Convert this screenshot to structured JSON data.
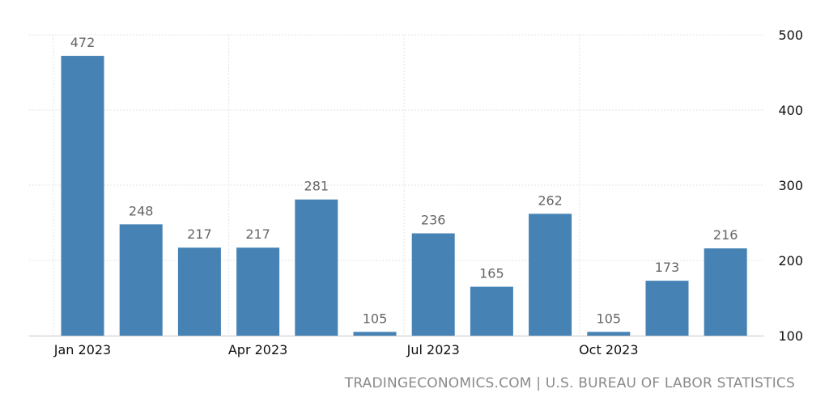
{
  "chart_data": {
    "type": "bar",
    "x": [
      "2023-01",
      "2023-02",
      "2023-03",
      "2023-04",
      "2023-05",
      "2023-06",
      "2023-07",
      "2023-08",
      "2023-09",
      "2023-10",
      "2023-11",
      "2023-12"
    ],
    "values": [
      472,
      248,
      217,
      217,
      281,
      105,
      236,
      165,
      262,
      105,
      173,
      216
    ],
    "data_labels": [
      "472",
      "248",
      "217",
      "217",
      "281",
      "105",
      "236",
      "165",
      "262",
      "105",
      "173",
      "216"
    ],
    "x_tick_labels": [
      {
        "at": "2023-01",
        "label": "Jan 2023"
      },
      {
        "at": "2023-04",
        "label": "Apr 2023"
      },
      {
        "at": "2023-07",
        "label": "Jul 2023"
      },
      {
        "at": "2023-10",
        "label": "Oct 2023"
      }
    ],
    "y_ticks": [
      100,
      200,
      300,
      400,
      500
    ],
    "ylim": [
      100,
      500
    ],
    "title": "",
    "xlabel": "",
    "ylabel": "",
    "grid": true,
    "y_axis_side": "right",
    "bar_color": "#4682b4",
    "label_color": "#666666",
    "grid_color": "#e3e3e3"
  },
  "source_text": "TRADINGECONOMICS.COM | U.S. BUREAU OF LABOR STATISTICS"
}
